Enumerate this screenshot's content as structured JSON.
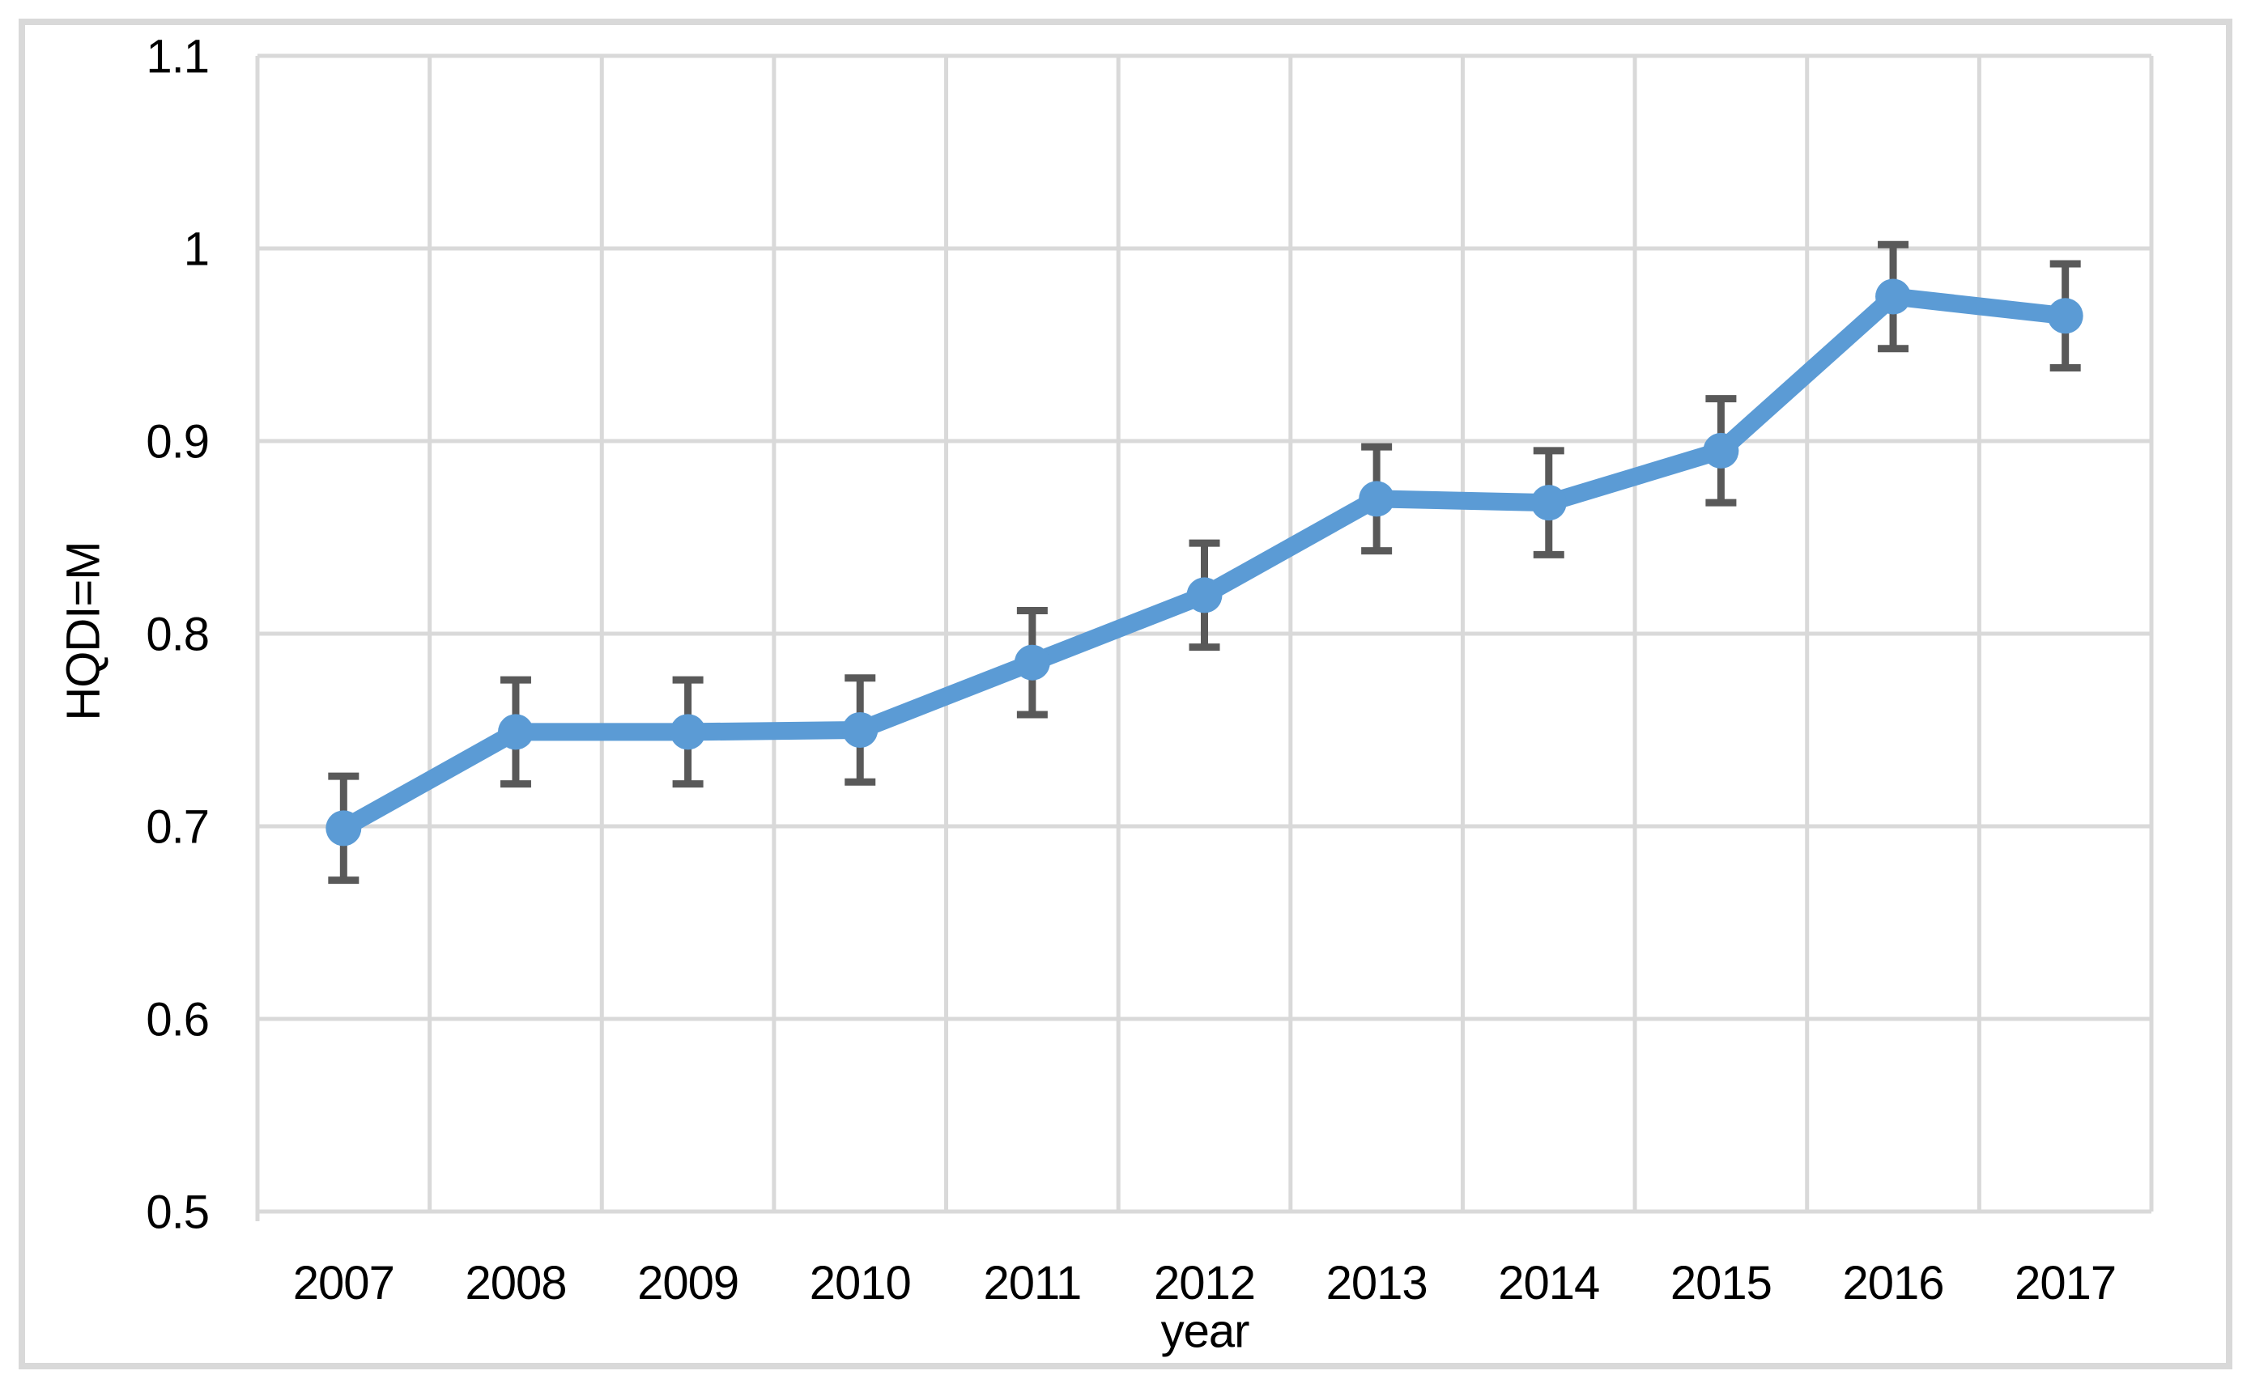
{
  "axes": {
    "x_title": "year",
    "y_title": "HQDI=M",
    "x_tick_labels": [
      "2007",
      "2008",
      "2009",
      "2010",
      "2011",
      "2012",
      "2013",
      "2014",
      "2015",
      "2016",
      "2017"
    ],
    "y_tick_labels": [
      "0.5",
      "0.6",
      "0.7",
      "0.8",
      "0.9",
      "1",
      "1.1"
    ]
  },
  "chart_data": {
    "type": "line",
    "title": "",
    "xlabel": "year",
    "ylabel": "HQDI=M",
    "categories": [
      "2007",
      "2008",
      "2009",
      "2010",
      "2011",
      "2012",
      "2013",
      "2014",
      "2015",
      "2016",
      "2017"
    ],
    "series": [
      {
        "name": "HQDI=M",
        "values": [
          0.699,
          0.749,
          0.749,
          0.75,
          0.785,
          0.82,
          0.87,
          0.868,
          0.895,
          0.975,
          0.965
        ],
        "error_bars": {
          "symmetric": true,
          "plus": [
            0.027,
            0.027,
            0.027,
            0.027,
            0.027,
            0.027,
            0.027,
            0.027,
            0.027,
            0.027,
            0.027
          ],
          "minus": [
            0.027,
            0.027,
            0.027,
            0.027,
            0.027,
            0.027,
            0.027,
            0.027,
            0.027,
            0.027,
            0.027
          ]
        }
      }
    ],
    "ylim": [
      0.5,
      1.1
    ],
    "ytick_step": 0.1,
    "grid": "both",
    "legend_position": "none",
    "marker": "circle"
  },
  "colors": {
    "line": "#5b9bd5",
    "marker": "#5b9bd5",
    "error_bar": "#595959",
    "gridline": "#d9d9d9",
    "figure_border": "#d9d9d9",
    "text": "#000000",
    "background": "#ffffff"
  }
}
